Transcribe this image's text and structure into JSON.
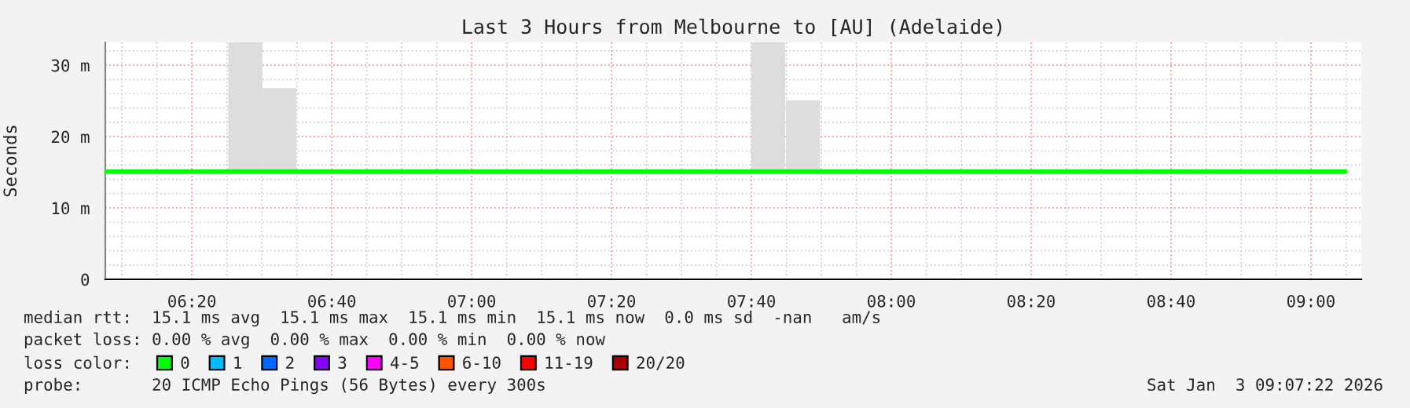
{
  "chart_data": {
    "type": "line",
    "title": "Last 3 Hours from Melbourne to [AU] (Adelaide)",
    "ylabel": "Seconds",
    "xlim": [
      6.127,
      9.12
    ],
    "ylim": [
      0,
      33.2
    ],
    "xticks": [
      {
        "value": 6.3333,
        "label": "06:20"
      },
      {
        "value": 6.6667,
        "label": "06:40"
      },
      {
        "value": 7,
        "label": "07:00"
      },
      {
        "value": 7.3333,
        "label": "07:20"
      },
      {
        "value": 7.6667,
        "label": "07:40"
      },
      {
        "value": 8,
        "label": "08:00"
      },
      {
        "value": 8.3333,
        "label": "08:20"
      },
      {
        "value": 8.6667,
        "label": "08:40"
      },
      {
        "value": 9,
        "label": "09:00"
      }
    ],
    "yticks": [
      0,
      {
        "value": 10,
        "label": "10 m"
      },
      {
        "value": 20,
        "label": "20 m"
      },
      {
        "value": 30,
        "label": "30 m"
      }
    ],
    "grid": true,
    "legend": "bottom",
    "legend_title": "loss color:",
    "series": [
      {
        "type": "bar",
        "color": "#dddddd",
        "x": [
          6.4605,
          6.5415,
          7.7068,
          7.7898
        ],
        "base": [
          15.1,
          15.1,
          15.1,
          15.1
        ],
        "values": [
          18.1,
          11.7,
          18.1,
          10.0
        ]
      },
      {
        "name": "0",
        "color": "#00ff00",
        "x": [
          6.127,
          9.082
        ],
        "values": [
          15.1,
          15.1
        ]
      },
      {
        "name": "1",
        "color": "#00bbff"
      },
      {
        "name": "2",
        "color": "#0066ff"
      },
      {
        "name": "3",
        "color": "#8800ff"
      },
      {
        "name": "4-5",
        "color": "#ff00ff"
      },
      {
        "name": "6-10",
        "color": "#ff5500"
      },
      {
        "name": "11-19",
        "color": "#ff0000"
      },
      {
        "name": "20/20",
        "color": "#aa0000"
      }
    ],
    "annotations": [
      "median rtt:  15.1 ms avg  15.1 ms max  15.1 ms min  15.1 ms now  0.0 ms sd  -nan   am/s",
      "packet loss: 0.00 % avg  0.00 % max  0.00 % min  0.00 % now",
      "probe:       20 ICMP Echo Pings (56 Bytes) every 300s",
      "Sat Jan  3 09:07:22 2026"
    ]
  }
}
